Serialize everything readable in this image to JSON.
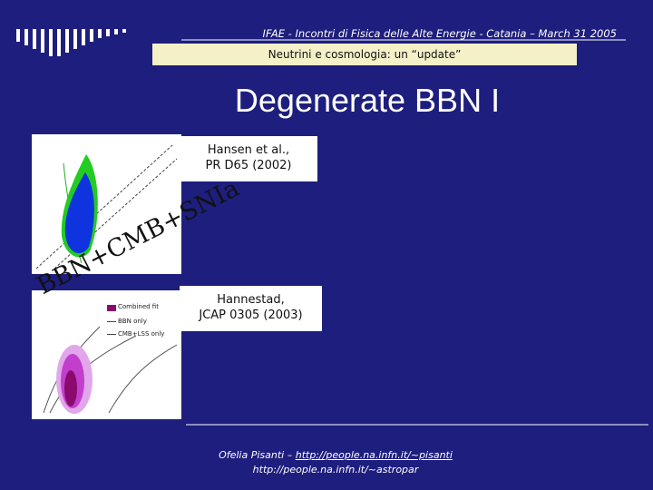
{
  "header": {
    "conference": "IFAE - Incontri di Fisica delle Alte Energie - Catania – March 31 2005",
    "subtitle": "Neutrini e cosmologia: un “update”"
  },
  "title": "Degenerate BBN I",
  "annotation": "BBN+CMB+SNIa",
  "figures": [
    {
      "citation": [
        "Hansen et al.,",
        "PR D65 (2002)"
      ]
    },
    {
      "citation": [
        "Hannestad,",
        "JCAP 0305 (2003)"
      ],
      "legend": [
        "Combined fit",
        "BBN only",
        "CMB+LSS only"
      ]
    }
  ],
  "footer": {
    "author": "Ofelia Pisanti –",
    "link": "http://people.na.infn.it/~pisanti",
    "line2": "http://people.na.infn.it/~astropar"
  }
}
